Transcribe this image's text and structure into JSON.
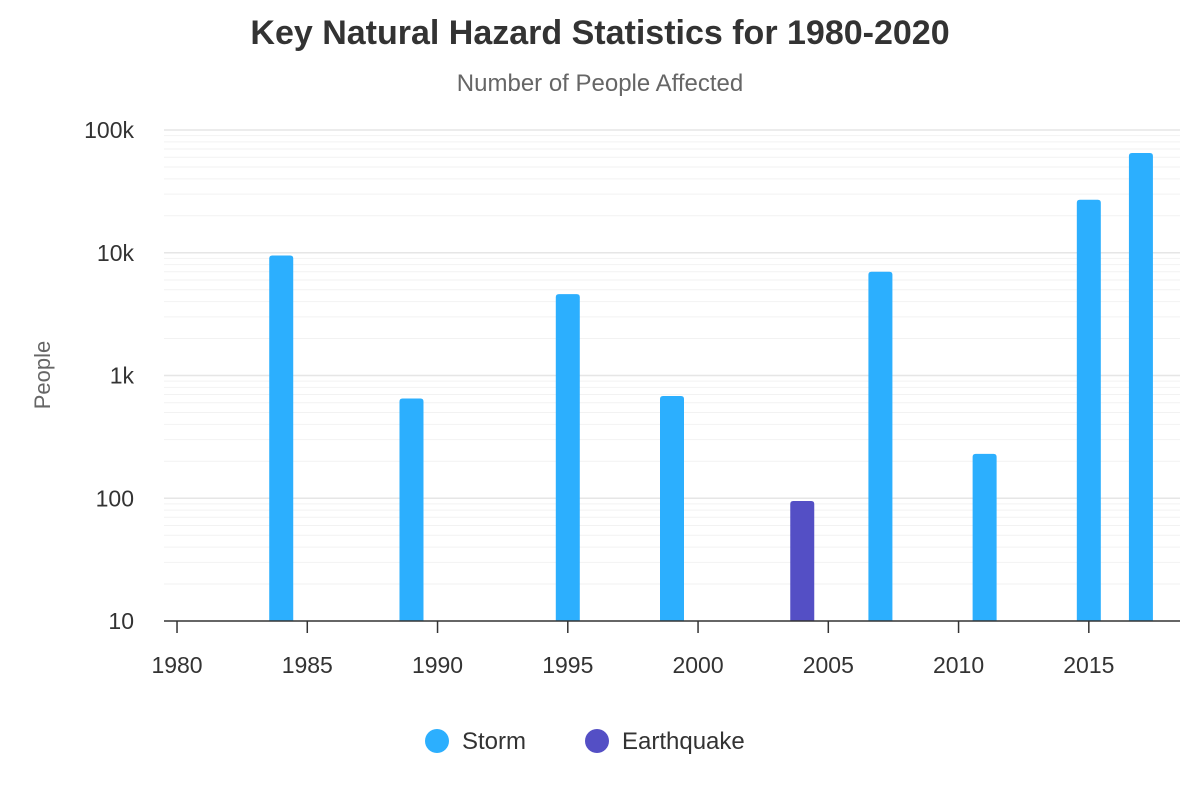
{
  "chart_data": {
    "type": "bar",
    "title": "Key Natural Hazard Statistics for 1980-2020",
    "subtitle": "Number of People Affected",
    "ylabel": "People",
    "xlabel": "",
    "x_scale": "linear",
    "y_scale": "log",
    "xlim": [
      1979.5,
      2018.5
    ],
    "ylim": [
      10,
      100000
    ],
    "x_ticks": [
      1980,
      1985,
      1990,
      1995,
      2000,
      2005,
      2010,
      2015
    ],
    "y_ticks": [
      {
        "value": 10,
        "label": "10"
      },
      {
        "value": 100,
        "label": "100"
      },
      {
        "value": 1000,
        "label": "1k"
      },
      {
        "value": 10000,
        "label": "10k"
      },
      {
        "value": 100000,
        "label": "100k"
      }
    ],
    "grid": true,
    "legend_position": "bottom-center",
    "series": [
      {
        "name": "Storm",
        "color": "#2caffe",
        "points": [
          {
            "x": 1984,
            "y": 9500
          },
          {
            "x": 1989,
            "y": 650
          },
          {
            "x": 1995,
            "y": 4600
          },
          {
            "x": 1999,
            "y": 680
          },
          {
            "x": 2007,
            "y": 7000
          },
          {
            "x": 2011,
            "y": 230
          },
          {
            "x": 2015,
            "y": 27000
          },
          {
            "x": 2017,
            "y": 65000
          }
        ]
      },
      {
        "name": "Earthquake",
        "color": "#544fc5",
        "points": [
          {
            "x": 2004,
            "y": 95
          }
        ]
      }
    ]
  }
}
